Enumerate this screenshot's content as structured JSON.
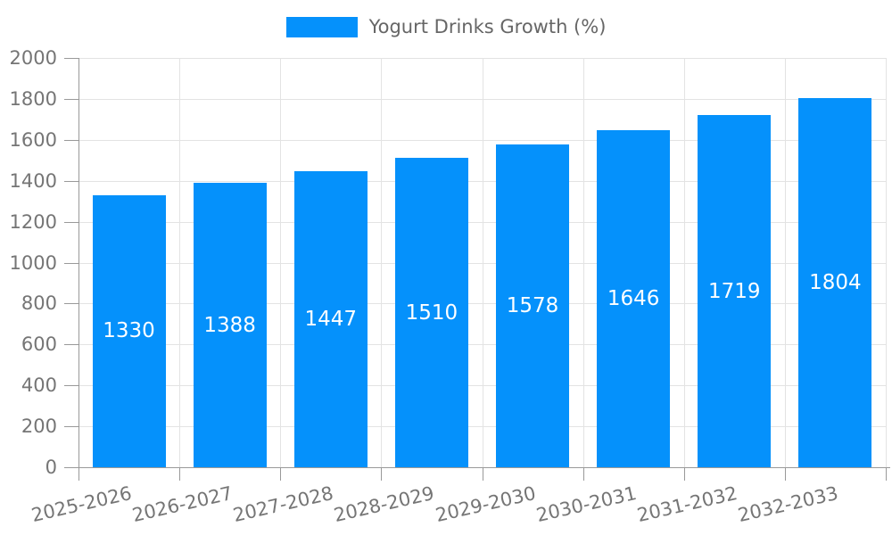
{
  "legend": {
    "label": "Yogurt Drinks Growth (%)"
  },
  "chart_data": {
    "type": "bar",
    "title": "",
    "categories": [
      "2025-2026",
      "2026-2027",
      "2027-2028",
      "2028-2029",
      "2029-2030",
      "2030-2031",
      "2031-2032",
      "2032-2033"
    ],
    "series": [
      {
        "name": "Yogurt Drinks Growth (%)",
        "values": [
          1330,
          1388,
          1447,
          1510,
          1578,
          1646,
          1719,
          1804
        ]
      }
    ],
    "value_labels_shown": [
      1330,
      1388,
      1447,
      1510,
      1578,
      1646,
      1719,
      1804
    ],
    "xlabel": "",
    "ylabel": "",
    "ylim": [
      0,
      2000
    ],
    "ytick_step": 200,
    "ytick_labels": [
      "0",
      "200",
      "400",
      "600",
      "800",
      "1000",
      "1200",
      "1400",
      "1600",
      "1800",
      "2000"
    ],
    "grid": "on",
    "legend_position": "top-center",
    "x_label_rotation_deg": 13,
    "value_label_position": "inside-middle",
    "colors": {
      "bar": "#0591fb",
      "value_text": "#ffffff",
      "axis_text": "#757575",
      "legend_text": "#666666",
      "grid_line": "#e3e3e3",
      "axis_line": "#999999",
      "background": "#ffffff"
    }
  }
}
